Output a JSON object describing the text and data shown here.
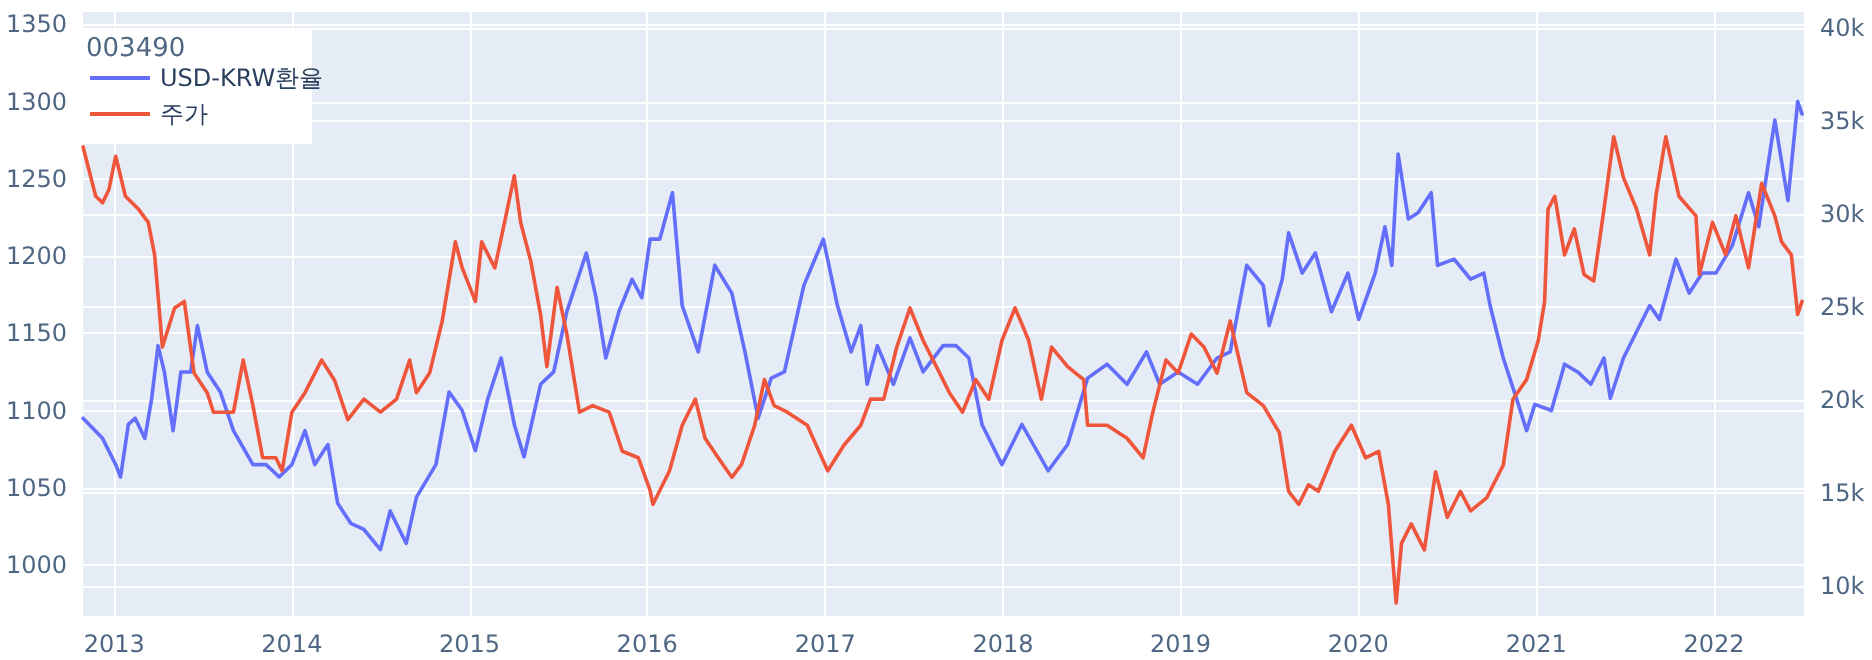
{
  "chart_data": {
    "type": "line",
    "legend_title": "003490",
    "legend": "top left",
    "grid": true,
    "xlim": [
      "2012-10-29",
      "2022-07-05"
    ],
    "xticks": [
      {
        "value": "2013-01-01",
        "label": "2013"
      },
      {
        "value": "2014-01-01",
        "label": "2014"
      },
      {
        "value": "2015-01-01",
        "label": "2015"
      },
      {
        "value": "2016-01-01",
        "label": "2016"
      },
      {
        "value": "2017-01-01",
        "label": "2017"
      },
      {
        "value": "2018-01-01",
        "label": "2018"
      },
      {
        "value": "2019-01-01",
        "label": "2019"
      },
      {
        "value": "2020-01-01",
        "label": "2020"
      },
      {
        "value": "2021-01-01",
        "label": "2021"
      },
      {
        "value": "2022-01-01",
        "label": "2022"
      }
    ],
    "ylim": [
      967,
      1358
    ],
    "yticks": [
      1000,
      1050,
      1100,
      1150,
      1200,
      1250,
      1300,
      1350
    ],
    "y2lim": [
      8400,
      40850
    ],
    "y2ticks": [
      {
        "value": 10000,
        "label": "10k"
      },
      {
        "value": 15000,
        "label": "15k"
      },
      {
        "value": 20000,
        "label": "20k"
      },
      {
        "value": 25000,
        "label": "25k"
      },
      {
        "value": 30000,
        "label": "30k"
      },
      {
        "value": 35000,
        "label": "35k"
      },
      {
        "value": 40000,
        "label": "40k"
      }
    ],
    "series": [
      {
        "name": "USD-KRW환율",
        "color": "#636efa",
        "x": [
          "2012-10-29",
          "2012-12-08",
          "2013-01-04",
          "2013-01-14",
          "2013-01-30",
          "2013-02-13",
          "2013-03-05",
          "2013-03-19",
          "2013-04-01",
          "2013-04-14",
          "2013-05-02",
          "2013-05-18",
          "2013-06-07",
          "2013-06-21",
          "2013-07-11",
          "2013-08-07",
          "2013-09-03",
          "2013-10-13",
          "2013-11-09",
          "2013-12-06",
          "2014-01-01",
          "2014-01-28",
          "2014-02-17",
          "2014-03-16",
          "2014-04-05",
          "2014-05-02",
          "2014-05-29",
          "2014-07-02",
          "2014-07-22",
          "2014-08-24",
          "2014-09-14",
          "2014-10-24",
          "2014-11-20",
          "2014-12-17",
          "2015-01-13",
          "2015-02-08",
          "2015-03-07",
          "2015-04-03",
          "2015-04-23",
          "2015-05-27",
          "2015-06-23",
          "2015-07-20",
          "2015-08-29",
          "2015-09-18",
          "2015-10-08",
          "2015-11-04",
          "2015-12-01",
          "2015-12-21",
          "2016-01-07",
          "2016-01-27",
          "2016-02-22",
          "2016-03-13",
          "2016-04-15",
          "2016-05-19",
          "2016-06-23",
          "2016-07-20",
          "2016-08-16",
          "2016-09-12",
          "2016-10-09",
          "2016-11-18",
          "2016-12-28",
          "2017-01-26",
          "2017-02-23",
          "2017-03-15",
          "2017-03-28",
          "2017-04-18",
          "2017-05-21",
          "2017-06-24",
          "2017-07-21",
          "2017-08-31",
          "2017-09-27",
          "2017-10-23",
          "2017-11-19",
          "2017-12-30",
          "2018-02-09",
          "2018-04-04",
          "2018-05-14",
          "2018-06-24",
          "2018-08-03",
          "2018-09-13",
          "2018-10-23",
          "2018-11-19",
          "2018-12-27",
          "2019-02-05",
          "2019-03-17",
          "2019-04-13",
          "2019-05-17",
          "2019-06-20",
          "2019-07-02",
          "2019-07-29",
          "2019-08-11",
          "2019-09-08",
          "2019-10-05",
          "2019-11-07",
          "2019-12-11",
          "2020-01-02",
          "2020-02-05",
          "2020-02-25",
          "2020-03-10",
          "2020-03-23",
          "2020-04-13",
          "2020-05-03",
          "2020-05-30",
          "2020-06-12",
          "2020-07-16",
          "2020-08-19",
          "2020-09-15",
          "2020-09-28",
          "2020-10-25",
          "2020-11-21",
          "2020-12-12",
          "2020-12-29",
          "2021-02-01",
          "2021-02-28",
          "2021-03-27",
          "2021-04-23",
          "2021-05-20",
          "2021-06-02",
          "2021-06-29",
          "2021-07-26",
          "2021-08-22",
          "2021-09-11",
          "2021-10-15",
          "2021-11-11",
          "2021-12-08",
          "2022-01-05",
          "2022-02-08",
          "2022-03-13",
          "2022-04-03",
          "2022-05-06",
          "2022-06-02",
          "2022-06-22",
          "2022-07-01"
        ],
        "values": [
          1095,
          1082,
          1065,
          1057,
          1091,
          1095,
          1082,
          1108,
          1142,
          1125,
          1087,
          1125,
          1125,
          1155,
          1125,
          1112,
          1087,
          1065,
          1065,
          1057,
          1065,
          1087,
          1065,
          1078,
          1040,
          1027,
          1023,
          1010,
          1035,
          1014,
          1044,
          1065,
          1112,
          1100,
          1074,
          1108,
          1134,
          1091,
          1070,
          1117,
          1125,
          1164,
          1202,
          1173,
          1134,
          1164,
          1185,
          1173,
          1211,
          1211,
          1241,
          1168,
          1138,
          1194,
          1176,
          1138,
          1095,
          1121,
          1125,
          1181,
          1211,
          1168,
          1138,
          1155,
          1117,
          1142,
          1117,
          1147,
          1125,
          1142,
          1142,
          1134,
          1091,
          1065,
          1091,
          1061,
          1078,
          1121,
          1130,
          1117,
          1138,
          1117,
          1125,
          1117,
          1134,
          1138,
          1194,
          1181,
          1155,
          1185,
          1215,
          1189,
          1202,
          1164,
          1189,
          1159,
          1189,
          1219,
          1194,
          1266,
          1224,
          1228,
          1241,
          1194,
          1198,
          1185,
          1189,
          1168,
          1134,
          1108,
          1087,
          1104,
          1100,
          1130,
          1125,
          1117,
          1134,
          1108,
          1134,
          1151,
          1168,
          1159,
          1198,
          1176,
          1189,
          1189,
          1207,
          1241,
          1219,
          1288,
          1236,
          1300,
          1292
        ]
      },
      {
        "name": "주가",
        "color": "#ef553b",
        "axis": "y2",
        "x": [
          "2012-10-29",
          "2012-11-24",
          "2012-12-08",
          "2012-12-21",
          "2013-01-04",
          "2013-01-24",
          "2013-02-20",
          "2013-03-12",
          "2013-03-25",
          "2013-04-10",
          "2013-05-05",
          "2013-05-25",
          "2013-06-14",
          "2013-07-11",
          "2013-07-24",
          "2013-09-03",
          "2013-09-23",
          "2013-10-13",
          "2013-11-02",
          "2013-11-29",
          "2013-12-12",
          "2014-01-01",
          "2014-01-28",
          "2014-03-03",
          "2014-03-30",
          "2014-04-26",
          "2014-05-29",
          "2014-07-02",
          "2014-08-04",
          "2014-08-31",
          "2014-09-14",
          "2014-10-11",
          "2014-11-06",
          "2014-12-03",
          "2014-12-17",
          "2015-01-13",
          "2015-01-26",
          "2015-02-22",
          "2015-03-14",
          "2015-04-03",
          "2015-04-16",
          "2015-05-07",
          "2015-05-27",
          "2015-06-09",
          "2015-06-30",
          "2015-07-20",
          "2015-08-15",
          "2015-09-11",
          "2015-10-15",
          "2015-11-11",
          "2015-12-14",
          "2016-01-07",
          "2016-01-13",
          "2016-02-16",
          "2016-03-13",
          "2016-04-09",
          "2016-04-29",
          "2016-05-26",
          "2016-06-23",
          "2016-07-13",
          "2016-08-09",
          "2016-08-29",
          "2016-09-18",
          "2016-10-15",
          "2016-11-25",
          "2017-01-06",
          "2017-02-09",
          "2017-03-15",
          "2017-04-04",
          "2017-05-01",
          "2017-05-28",
          "2017-06-24",
          "2017-07-21",
          "2017-08-24",
          "2017-09-13",
          "2017-10-10",
          "2017-11-06",
          "2017-12-03",
          "2017-12-30",
          "2018-01-26",
          "2018-02-23",
          "2018-03-21",
          "2018-04-11",
          "2018-05-14",
          "2018-06-16",
          "2018-06-24",
          "2018-08-03",
          "2018-09-13",
          "2018-10-16",
          "2018-11-05",
          "2018-12-02",
          "2018-12-27",
          "2019-01-23",
          "2019-02-18",
          "2019-03-17",
          "2019-04-13",
          "2019-05-17",
          "2019-06-20",
          "2019-07-23",
          "2019-08-11",
          "2019-09-01",
          "2019-09-21",
          "2019-10-11",
          "2019-11-14",
          "2019-12-18",
          "2020-01-16",
          "2020-02-12",
          "2020-03-03",
          "2020-03-19",
          "2020-03-30",
          "2020-04-19",
          "2020-05-16",
          "2020-06-08",
          "2020-07-02",
          "2020-07-29",
          "2020-08-19",
          "2020-09-21",
          "2020-10-25",
          "2020-11-14",
          "2020-12-12",
          "2021-01-05",
          "2021-01-18",
          "2021-01-25",
          "2021-02-08",
          "2021-02-28",
          "2021-03-20",
          "2021-04-09",
          "2021-04-29",
          "2021-05-20",
          "2021-06-09",
          "2021-06-29",
          "2021-07-26",
          "2021-08-22",
          "2021-09-04",
          "2021-09-24",
          "2021-10-21",
          "2021-11-25",
          "2021-12-02",
          "2021-12-29",
          "2022-01-25",
          "2022-02-15",
          "2022-03-13",
          "2022-04-09",
          "2022-05-06",
          "2022-05-20",
          "2022-06-09",
          "2022-06-22",
          "2022-07-01"
        ],
        "values": [
          33600,
          30950,
          30600,
          31300,
          33100,
          30950,
          30250,
          29550,
          27800,
          22850,
          24950,
          25300,
          21450,
          20400,
          19350,
          19350,
          22150,
          19700,
          16900,
          16900,
          16200,
          19350,
          20400,
          22150,
          21050,
          18950,
          20050,
          19350,
          20050,
          22150,
          20400,
          21450,
          24250,
          28500,
          27100,
          25300,
          28500,
          27100,
          29550,
          32050,
          29550,
          27450,
          24600,
          21800,
          26050,
          23550,
          19350,
          19700,
          19350,
          17250,
          16900,
          15150,
          14400,
          16200,
          18650,
          20050,
          17950,
          16900,
          15850,
          16550,
          18650,
          21100,
          19700,
          19350,
          18650,
          16200,
          17600,
          18650,
          20050,
          20050,
          22850,
          24950,
          23200,
          21450,
          20400,
          19350,
          21100,
          20050,
          23200,
          24950,
          23200,
          20050,
          22850,
          21800,
          21100,
          18650,
          18650,
          17950,
          16900,
          19350,
          22150,
          21450,
          23550,
          22850,
          21450,
          24250,
          20400,
          19700,
          18250,
          15100,
          14400,
          15450,
          15100,
          17250,
          18650,
          16900,
          17250,
          14400,
          9100,
          12300,
          13350,
          11950,
          16150,
          13700,
          15100,
          14050,
          14750,
          16500,
          20050,
          21100,
          23200,
          25300,
          30250,
          30950,
          27800,
          29200,
          26750,
          26400,
          30250,
          34150,
          31950,
          30250,
          27800,
          31000,
          34150,
          30950,
          29900,
          26750,
          29550,
          27800,
          29900,
          27100,
          31650,
          29900,
          28500,
          27800,
          24600,
          25300
        ]
      }
    ]
  }
}
